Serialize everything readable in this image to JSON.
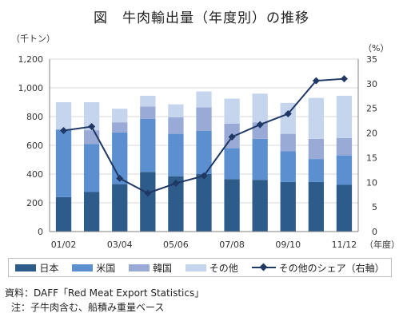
{
  "title": "図　牛肉輸出量（年度別）の推移",
  "chart_data": {
    "type": "bar",
    "stacked": true,
    "categories": [
      "01/02",
      "02/03",
      "03/04",
      "04/05",
      "05/06",
      "06/07",
      "07/08",
      "08/09",
      "09/10",
      "10/11",
      "11/12"
    ],
    "x_tick_labels": [
      "01/02",
      "",
      "03/04",
      "",
      "05/06",
      "",
      "07/08",
      "",
      "09/10",
      "",
      "11/12"
    ],
    "xlabel": "（年度）",
    "y_left": {
      "unit_label": "（千トン）",
      "min": 0,
      "max": 1200,
      "step": 200,
      "tick_labels": [
        "0",
        "200",
        "400",
        "600",
        "800",
        "1,000",
        "1,200"
      ]
    },
    "y_right": {
      "unit_label": "（%）",
      "min": 0,
      "max": 35,
      "step": 5,
      "tick_labels": [
        "0",
        "5",
        "10",
        "15",
        "20",
        "25",
        "30",
        "35"
      ]
    },
    "grid": true,
    "series": [
      {
        "name": "日本",
        "color": "#2e5c8a",
        "values": [
          240,
          275,
          330,
          415,
          385,
          400,
          365,
          360,
          345,
          345,
          325
        ]
      },
      {
        "name": "米国",
        "color": "#5b8fd0",
        "values": [
          470,
          335,
          360,
          370,
          295,
          300,
          215,
          285,
          215,
          160,
          205
        ]
      },
      {
        "name": "韓国",
        "color": "#9aaad6",
        "values": [
          0,
          95,
          70,
          85,
          115,
          165,
          170,
          115,
          120,
          140,
          120
        ]
      },
      {
        "name": "その他",
        "color": "#c5d5ee",
        "values": [
          190,
          195,
          95,
          75,
          90,
          110,
          175,
          200,
          215,
          285,
          295
        ]
      }
    ],
    "line_series": {
      "name": "その他のシェア（右軸）",
      "color": "#1f3864",
      "axis": "right",
      "values": [
        20.5,
        21.3,
        10.8,
        7.8,
        9.8,
        11.3,
        19.2,
        21.7,
        23.9,
        30.6,
        31.0
      ]
    },
    "legend_position": "bottom"
  },
  "footnotes": {
    "source": "資料：DAFF「Red Meat Export Statistics」",
    "note": "注：子牛肉含む、船積み重量ベース"
  }
}
